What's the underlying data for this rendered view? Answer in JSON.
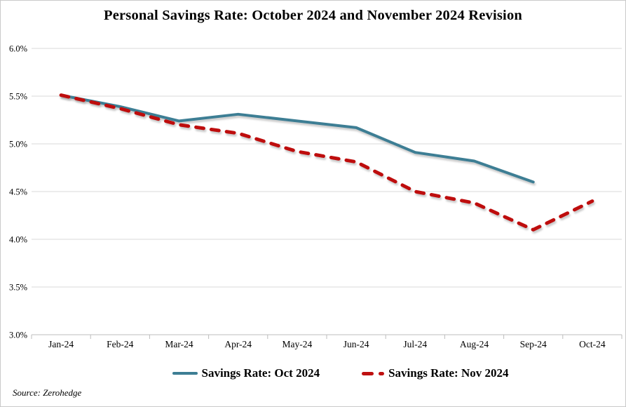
{
  "page": {
    "source_note": "Source: Zerohedge"
  },
  "chart_data": {
    "type": "line",
    "title": "Personal Savings Rate: October 2024 and November 2024 Revision",
    "categories": [
      "Jan-24",
      "Feb-24",
      "Mar-24",
      "Apr-24",
      "May-24",
      "Jun-24",
      "Jul-24",
      "Aug-24",
      "Sep-24",
      "Oct-24"
    ],
    "series": [
      {
        "name": "Savings Rate: Oct 2024",
        "color": "#3d7e94",
        "style": "solid",
        "values": [
          5.51,
          5.39,
          5.24,
          5.31,
          5.24,
          5.17,
          4.91,
          4.82,
          4.6,
          null
        ]
      },
      {
        "name": "Savings Rate: Nov 2024",
        "color": "#be1010",
        "style": "dashed",
        "values": [
          5.51,
          5.37,
          5.2,
          5.11,
          4.92,
          4.81,
          4.5,
          4.38,
          4.1,
          4.4
        ]
      }
    ],
    "xlabel": "",
    "ylabel": "",
    "ylim": [
      3.0,
      6.0
    ],
    "y_step": 0.5,
    "y_ticks": [
      "6.0%",
      "5.5%",
      "5.0%",
      "4.5%",
      "4.0%",
      "3.5%",
      "3.0%"
    ],
    "grid": "horizontal",
    "legend_position": "bottom",
    "colors": {
      "gridline": "#d9d9d9",
      "axis": "#bdbdbd",
      "text": "#000000",
      "border": "#c9c9c9"
    }
  }
}
